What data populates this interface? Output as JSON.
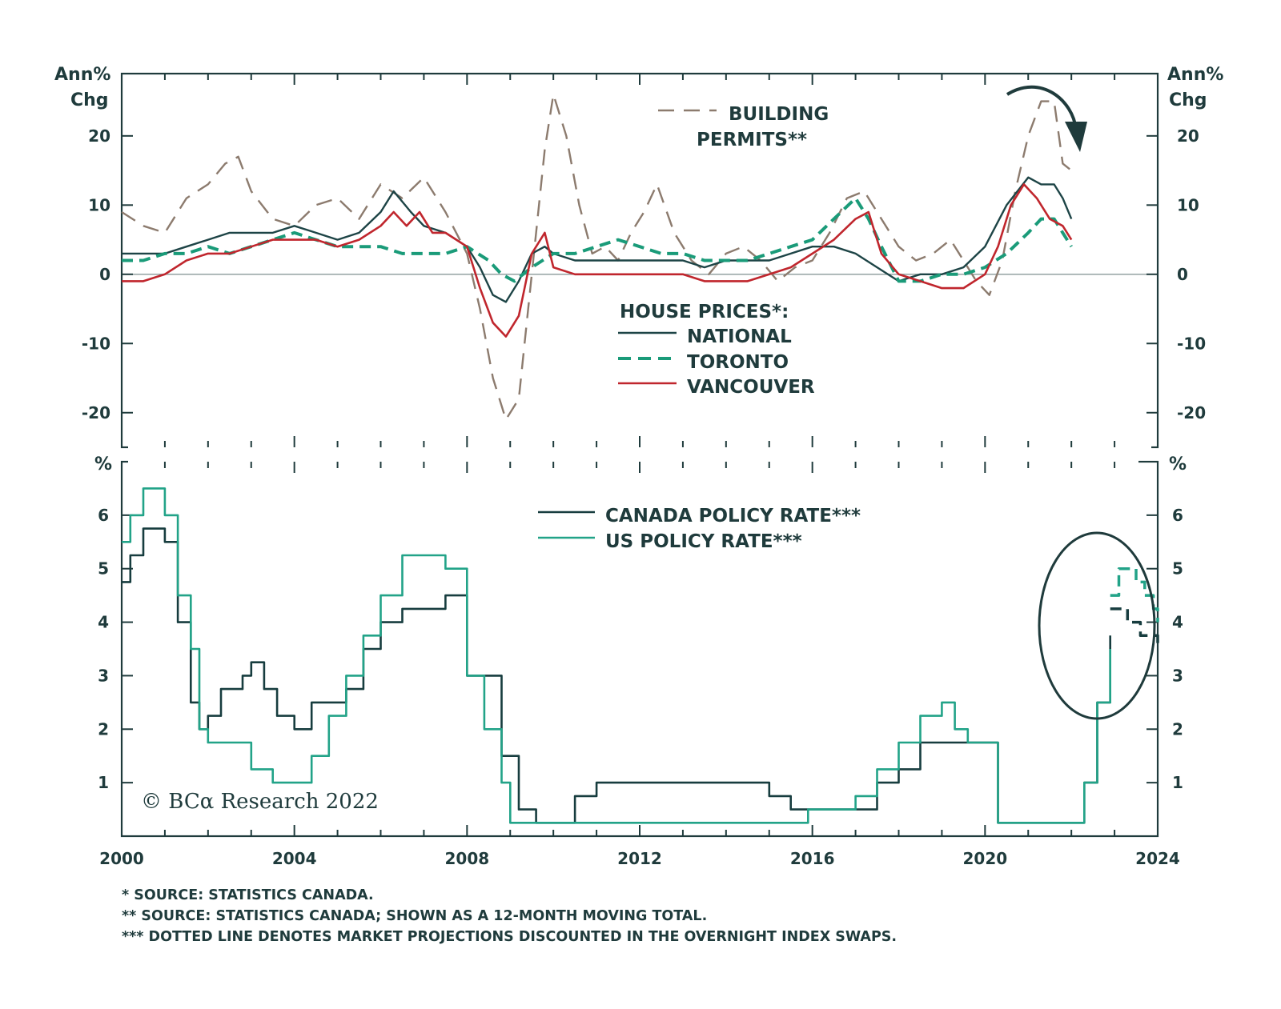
{
  "colors": {
    "frame": "#1f3b3c",
    "national": "#1d4446",
    "toronto": "#1a9b79",
    "vancouver": "#c0262d",
    "permits": "#8c7b6e",
    "canada": "#173d3f",
    "us": "#22a388",
    "zero_line": "#8a9a9a"
  },
  "x_axis": {
    "ticks": [
      "2000",
      "2004",
      "2008",
      "2012",
      "2016",
      "2020",
      "2024"
    ]
  },
  "top_panel": {
    "unit_left": [
      "Ann%",
      "Chg"
    ],
    "unit_right": [
      "Ann%",
      "Chg"
    ],
    "ticks": [
      "20",
      "10",
      "0",
      "-10",
      "-20"
    ],
    "legend_permits": [
      "BUILDING",
      "PERMITS**"
    ],
    "legend_house_title": "HOUSE PRICES*:",
    "legend_national": "NATIONAL",
    "legend_toronto": "TORONTO",
    "legend_vancouver": "VANCOUVER",
    "annotation": "arrow-down-icon"
  },
  "bottom_panel": {
    "unit_left": "%",
    "unit_right": "%",
    "ticks": [
      "6",
      "5",
      "4",
      "3",
      "2",
      "1"
    ],
    "legend_canada": "CANADA POLICY RATE***",
    "legend_us": "US POLICY RATE***",
    "annotation": "ellipse-highlight"
  },
  "watermark": "© BCα Research 2022",
  "footnotes": [
    "*  SOURCE: STATISTICS CANADA.",
    "**  SOURCE: STATISTICS CANADA; SHOWN AS A 12-MONTH MOVING TOTAL.",
    "*** DOTTED LINE DENOTES MARKET PROJECTIONS DISCOUNTED IN THE OVERNIGHT INDEX SWAPS."
  ],
  "chart_data": [
    {
      "type": "line",
      "panel": "top",
      "ylabel": "Ann% Chg",
      "xlim": [
        2000,
        2024
      ],
      "ylim": [
        -25,
        29
      ],
      "yticks": [
        -20,
        -10,
        0,
        10,
        20
      ],
      "series": [
        {
          "name": "BUILDING PERMITS**",
          "style": "dashed",
          "x": [
            2000.0,
            2000.5,
            2001.0,
            2001.5,
            2002.0,
            2002.4,
            2002.7,
            2003.0,
            2003.5,
            2004.0,
            2004.5,
            2005.0,
            2005.5,
            2006.0,
            2006.5,
            2007.0,
            2007.5,
            2008.0,
            2008.3,
            2008.6,
            2008.9,
            2009.2,
            2009.5,
            2009.8,
            2010.0,
            2010.3,
            2010.6,
            2010.9,
            2011.2,
            2011.5,
            2011.8,
            2012.1,
            2012.4,
            2012.8,
            2013.2,
            2013.6,
            2014.0,
            2014.4,
            2014.8,
            2015.2,
            2015.6,
            2016.0,
            2016.4,
            2016.8,
            2017.2,
            2017.6,
            2018.0,
            2018.4,
            2018.8,
            2019.2,
            2019.5,
            2019.8,
            2020.1,
            2020.4,
            2020.7,
            2021.0,
            2021.3,
            2021.6,
            2021.8,
            2022.0
          ],
          "y": [
            9,
            7,
            6,
            11,
            13,
            16,
            17,
            12,
            8,
            7,
            10,
            11,
            8,
            13,
            11,
            14,
            9,
            3,
            -5,
            -15,
            -21,
            -18,
            0,
            18,
            26,
            20,
            10,
            3,
            4,
            2,
            6,
            9,
            13,
            6,
            2,
            0,
            3,
            4,
            2,
            -1,
            1,
            2,
            6,
            11,
            12,
            8,
            4,
            2,
            3,
            5,
            2,
            -1,
            -3,
            2,
            12,
            20,
            25,
            25,
            16,
            15
          ]
        },
        {
          "name": "NATIONAL",
          "style": "solid",
          "x": [
            2000.0,
            2000.5,
            2001.0,
            2001.5,
            2002.0,
            2002.5,
            2003.0,
            2003.5,
            2004.0,
            2004.5,
            2005.0,
            2005.5,
            2006.0,
            2006.3,
            2006.7,
            2007.0,
            2007.5,
            2008.0,
            2008.3,
            2008.6,
            2008.9,
            2009.2,
            2009.5,
            2009.8,
            2010.0,
            2010.5,
            2011.0,
            2011.5,
            2012.0,
            2012.5,
            2013.0,
            2013.5,
            2014.0,
            2014.5,
            2015.0,
            2015.5,
            2016.0,
            2016.5,
            2017.0,
            2017.5,
            2018.0,
            2018.5,
            2019.0,
            2019.5,
            2020.0,
            2020.5,
            2021.0,
            2021.3,
            2021.6,
            2021.8,
            2022.0
          ],
          "y": [
            3,
            3,
            3,
            4,
            5,
            6,
            6,
            6,
            7,
            6,
            5,
            6,
            9,
            12,
            9,
            7,
            6,
            4,
            1,
            -3,
            -4,
            -1,
            3,
            4,
            3,
            2,
            2,
            2,
            2,
            2,
            2,
            1,
            2,
            2,
            2,
            3,
            4,
            4,
            3,
            1,
            -1,
            0,
            0,
            1,
            4,
            10,
            14,
            13,
            13,
            11,
            8
          ]
        },
        {
          "name": "TORONTO",
          "style": "dashed",
          "x": [
            2000.0,
            2000.5,
            2001.0,
            2001.5,
            2002.0,
            2002.5,
            2003.0,
            2003.5,
            2004.0,
            2004.5,
            2005.0,
            2005.5,
            2006.0,
            2006.5,
            2007.0,
            2007.5,
            2008.0,
            2008.5,
            2008.8,
            2009.1,
            2009.5,
            2010.0,
            2010.5,
            2011.0,
            2011.5,
            2012.0,
            2012.5,
            2013.0,
            2013.5,
            2014.0,
            2014.5,
            2015.0,
            2015.5,
            2016.0,
            2016.5,
            2017.0,
            2017.3,
            2017.6,
            2018.0,
            2018.5,
            2019.0,
            2019.5,
            2020.0,
            2020.5,
            2021.0,
            2021.3,
            2021.6,
            2021.8,
            2022.0
          ],
          "y": [
            2,
            2,
            3,
            3,
            4,
            3,
            4,
            5,
            6,
            5,
            4,
            4,
            4,
            3,
            3,
            3,
            4,
            2,
            0,
            -1,
            1,
            3,
            3,
            4,
            5,
            4,
            3,
            3,
            2,
            2,
            2,
            3,
            4,
            5,
            8,
            11,
            8,
            4,
            -1,
            -1,
            0,
            0,
            1,
            3,
            6,
            8,
            8,
            6,
            4
          ]
        },
        {
          "name": "VANCOUVER",
          "style": "solid",
          "x": [
            2000.0,
            2000.5,
            2001.0,
            2001.5,
            2002.0,
            2002.5,
            2003.0,
            2003.5,
            2004.0,
            2004.5,
            2005.0,
            2005.5,
            2006.0,
            2006.3,
            2006.6,
            2006.9,
            2007.2,
            2007.5,
            2008.0,
            2008.3,
            2008.6,
            2008.9,
            2009.2,
            2009.5,
            2009.8,
            2010.0,
            2010.5,
            2011.0,
            2011.5,
            2012.0,
            2012.5,
            2013.0,
            2013.5,
            2014.0,
            2014.5,
            2015.0,
            2015.5,
            2016.0,
            2016.5,
            2017.0,
            2017.3,
            2017.6,
            2018.0,
            2018.5,
            2019.0,
            2019.5,
            2020.0,
            2020.3,
            2020.6,
            2020.9,
            2021.2,
            2021.5,
            2021.8,
            2022.0
          ],
          "y": [
            -1,
            -1,
            0,
            2,
            3,
            3,
            4,
            5,
            5,
            5,
            4,
            5,
            7,
            9,
            7,
            9,
            6,
            6,
            4,
            -2,
            -7,
            -9,
            -6,
            3,
            6,
            1,
            0,
            0,
            0,
            0,
            0,
            0,
            -1,
            -1,
            -1,
            0,
            1,
            3,
            5,
            8,
            9,
            3,
            0,
            -1,
            -2,
            -2,
            0,
            4,
            10,
            13,
            11,
            8,
            7,
            5
          ]
        }
      ]
    },
    {
      "type": "line",
      "panel": "bottom",
      "ylabel": "%",
      "xlim": [
        2000,
        2024
      ],
      "ylim": [
        0,
        7
      ],
      "yticks": [
        1,
        2,
        3,
        4,
        5,
        6
      ],
      "series": [
        {
          "name": "CANADA POLICY RATE***",
          "style": "solid",
          "x": [
            2000.0,
            2000.2,
            2000.5,
            2001.0,
            2001.3,
            2001.6,
            2001.8,
            2002.0,
            2002.3,
            2002.6,
            2002.8,
            2003.0,
            2003.3,
            2003.6,
            2004.0,
            2004.4,
            2004.8,
            2005.2,
            2005.6,
            2006.0,
            2006.5,
            2007.0,
            2007.5,
            2008.0,
            2008.4,
            2008.8,
            2009.2,
            2009.6,
            2010.0,
            2010.5,
            2011.0,
            2012.0,
            2013.0,
            2014.0,
            2015.0,
            2015.5,
            2016.0,
            2016.5,
            2017.0,
            2017.5,
            2018.0,
            2018.5,
            2019.0,
            2019.5,
            2020.0,
            2020.3,
            2021.0,
            2021.5,
            2022.0,
            2022.3,
            2022.6,
            2022.9
          ],
          "y": [
            4.75,
            5.25,
            5.75,
            5.5,
            4.0,
            2.5,
            2.0,
            2.25,
            2.75,
            2.75,
            3.0,
            3.25,
            2.75,
            2.25,
            2.0,
            2.5,
            2.5,
            2.75,
            3.5,
            4.0,
            4.25,
            4.25,
            4.5,
            3.0,
            3.0,
            1.5,
            0.5,
            0.25,
            0.25,
            0.75,
            1.0,
            1.0,
            1.0,
            1.0,
            0.75,
            0.5,
            0.5,
            0.5,
            0.5,
            1.0,
            1.25,
            1.75,
            1.75,
            1.75,
            1.75,
            0.25,
            0.25,
            0.25,
            0.25,
            1.0,
            2.5,
            3.75
          ]
        },
        {
          "name": "US POLICY RATE***",
          "style": "solid",
          "x": [
            2000.0,
            2000.2,
            2000.5,
            2001.0,
            2001.3,
            2001.6,
            2001.8,
            2002.0,
            2002.5,
            2003.0,
            2003.5,
            2004.0,
            2004.4,
            2004.8,
            2005.2,
            2005.6,
            2006.0,
            2006.5,
            2007.0,
            2007.5,
            2008.0,
            2008.4,
            2008.8,
            2009.0,
            2010.0,
            2012.0,
            2014.0,
            2015.0,
            2015.9,
            2016.5,
            2017.0,
            2017.5,
            2018.0,
            2018.5,
            2019.0,
            2019.3,
            2019.6,
            2020.0,
            2020.3,
            2021.0,
            2021.5,
            2022.0,
            2022.3,
            2022.6,
            2022.9
          ],
          "y": [
            5.5,
            6.0,
            6.5,
            6.0,
            4.5,
            3.5,
            2.0,
            1.75,
            1.75,
            1.25,
            1.0,
            1.0,
            1.5,
            2.25,
            3.0,
            3.75,
            4.5,
            5.25,
            5.25,
            5.0,
            3.0,
            2.0,
            1.0,
            0.25,
            0.25,
            0.25,
            0.25,
            0.25,
            0.5,
            0.5,
            0.75,
            1.25,
            1.75,
            2.25,
            2.5,
            2.0,
            1.75,
            1.75,
            0.25,
            0.25,
            0.25,
            0.25,
            1.0,
            2.5,
            3.5
          ]
        },
        {
          "name": "CANADA POLICY RATE*** (projection)",
          "style": "dashed",
          "x": [
            2022.9,
            2023.1,
            2023.3,
            2023.6,
            2023.9,
            2024.0
          ],
          "y": [
            4.25,
            4.25,
            4.0,
            3.75,
            3.75,
            3.5
          ]
        },
        {
          "name": "US POLICY RATE*** (projection)",
          "style": "dashed",
          "x": [
            2022.9,
            2023.1,
            2023.3,
            2023.5,
            2023.7,
            2023.9,
            2024.0
          ],
          "y": [
            4.5,
            5.0,
            5.0,
            4.75,
            4.5,
            4.25,
            4.0
          ]
        }
      ]
    }
  ]
}
